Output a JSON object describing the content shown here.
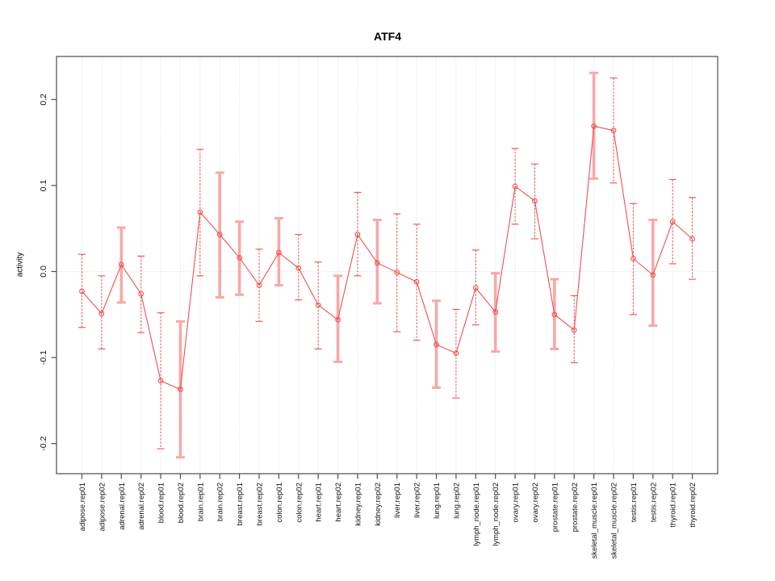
{
  "chart_data": {
    "type": "scatter",
    "title": "ATF4",
    "xlabel": "",
    "ylabel": "activity",
    "ylim": [
      -0.235,
      0.25
    ],
    "ytick_labels": [
      "0.2",
      "0.1",
      "0.0",
      "-0.1",
      "-0.2"
    ],
    "ytick_values": [
      0.2,
      0.1,
      0.0,
      -0.1,
      -0.2
    ],
    "grid": {
      "vertical": "dotted line at every category",
      "horizontal_at_zero": true
    },
    "legend": "none",
    "marker": "open-circle",
    "colors": {
      "series_red": "#ef4f4f",
      "thick_bar_pink": "#f8a8a8",
      "gridline_gray": "#d9d9d9",
      "box_gray": "#4c4c4c",
      "text_black": "#111111"
    },
    "categories": [
      "adipose.rep01",
      "adipose.rep02",
      "adrenal.rep01",
      "adrenal.rep02",
      "blood.rep01",
      "blood.rep02",
      "brain.rep01",
      "brain.rep02",
      "breast.rep01",
      "breast.rep02",
      "colon.rep01",
      "colon.rep02",
      "heart.rep01",
      "heart.rep02",
      "kidney.rep01",
      "kidney.rep02",
      "liver.rep01",
      "liver.rep02",
      "lung.rep01",
      "lung.rep02",
      "lymph_node.rep01",
      "lymph_node.rep02",
      "ovary.rep01",
      "ovary.rep02",
      "prostate.rep01",
      "prostate.rep02",
      "skeletal_muscle.rep01",
      "skeletal_muscle.rep02",
      "testis.rep01",
      "testis.rep02",
      "thyroid.rep01",
      "thyroid.rep02"
    ],
    "series": [
      {
        "name": "ATF4 activity",
        "values": [
          -0.023,
          -0.049,
          0.008,
          -0.026,
          -0.127,
          -0.137,
          0.069,
          0.043,
          0.016,
          -0.016,
          0.022,
          0.004,
          -0.039,
          -0.056,
          0.043,
          0.01,
          -0.001,
          -0.012,
          -0.085,
          -0.095,
          -0.019,
          -0.047,
          0.099,
          0.082,
          -0.05,
          -0.068,
          0.169,
          0.164,
          0.015,
          -0.004,
          0.058,
          0.038
        ],
        "ci_low": [
          -0.065,
          -0.09,
          -0.036,
          -0.071,
          -0.206,
          -0.216,
          -0.005,
          -0.03,
          -0.027,
          -0.058,
          -0.016,
          -0.033,
          -0.09,
          -0.105,
          -0.005,
          -0.037,
          -0.07,
          -0.08,
          -0.135,
          -0.147,
          -0.062,
          -0.093,
          0.055,
          0.038,
          -0.09,
          -0.106,
          0.108,
          0.103,
          -0.05,
          -0.063,
          0.009,
          -0.009
        ],
        "ci_high": [
          0.02,
          -0.005,
          0.051,
          0.018,
          -0.048,
          -0.058,
          0.142,
          0.115,
          0.058,
          0.026,
          0.062,
          0.043,
          0.011,
          -0.005,
          0.092,
          0.06,
          0.067,
          0.055,
          -0.034,
          -0.044,
          0.025,
          -0.002,
          0.143,
          0.125,
          -0.009,
          -0.028,
          0.231,
          0.225,
          0.079,
          0.06,
          0.107,
          0.086
        ],
        "bar_style": [
          "thin",
          "thin",
          "thick",
          "thin",
          "thin",
          "thick",
          "thin",
          "thick",
          "thick",
          "thin",
          "thick",
          "thin",
          "thin",
          "thick",
          "thin",
          "thick",
          "thin",
          "thin",
          "thick",
          "thin",
          "thin",
          "thick",
          "thin",
          "thin",
          "thick",
          "thin",
          "thick",
          "thin",
          "thin",
          "thick",
          "thin",
          "thin"
        ]
      }
    ]
  }
}
